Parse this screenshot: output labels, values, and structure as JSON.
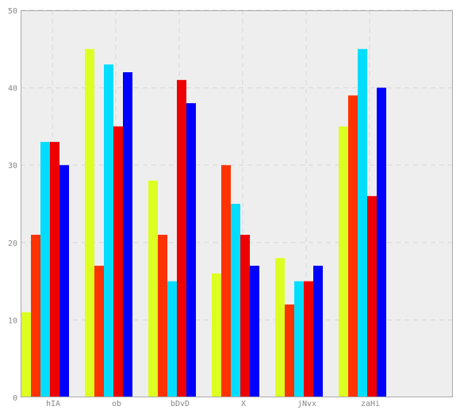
{
  "chart_data": {
    "type": "bar",
    "title": "",
    "xlabel": "",
    "ylabel": "",
    "categories": [
      "hIA",
      "ob",
      "bDvD",
      "X",
      "jNvx",
      "zaHi"
    ],
    "ylim": [
      0,
      50
    ],
    "y_ticks": [
      0,
      10,
      20,
      30,
      40,
      50
    ],
    "grid": true,
    "legend": "none",
    "series": [
      {
        "color": "#ddff22",
        "values": [
          11,
          45,
          28,
          16,
          18,
          35
        ]
      },
      {
        "color": "#ff3300",
        "values": [
          21,
          17,
          21,
          30,
          12,
          39
        ]
      },
      {
        "color": "#00ddff",
        "values": [
          33,
          43,
          15,
          25,
          15,
          45
        ]
      },
      {
        "color": "#ee0000",
        "values": [
          33,
          35,
          41,
          21,
          15,
          26
        ]
      },
      {
        "color": "#0000ff",
        "values": [
          30,
          42,
          38,
          17,
          17,
          40
        ]
      }
    ],
    "colors": {
      "plot_background": "#eeeeee",
      "grid": "#dddddd",
      "axis": "#aaaaaa"
    }
  }
}
